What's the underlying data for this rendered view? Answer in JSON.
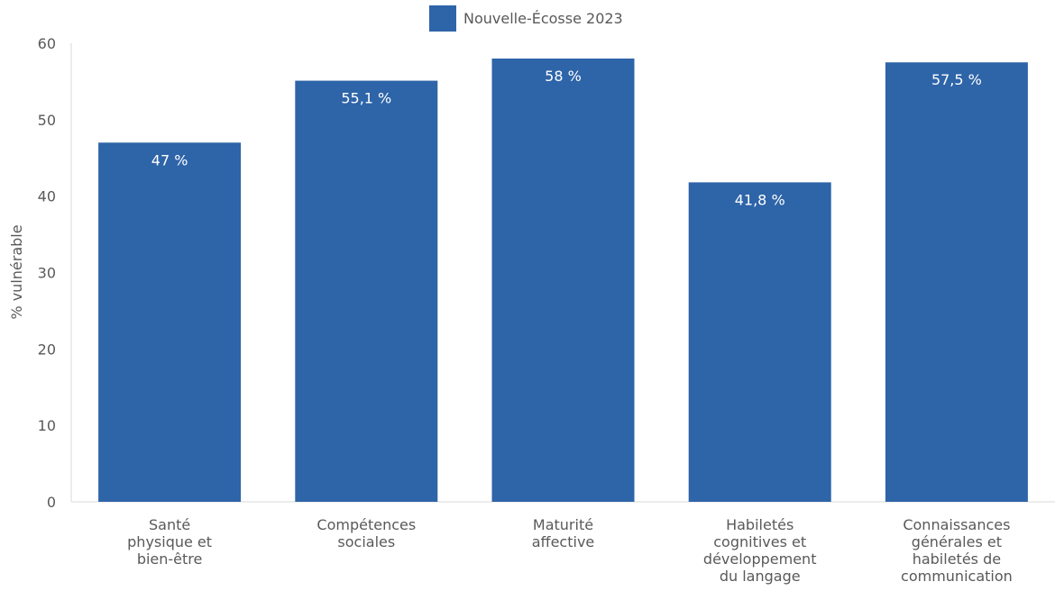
{
  "chart_data": {
    "type": "bar",
    "categories": [
      [
        "Santé",
        "physique et",
        "bien-être"
      ],
      [
        "Compétences",
        "sociales"
      ],
      [
        "Maturité",
        "affective"
      ],
      [
        "Habiletés",
        "cognitives et",
        "développement",
        "du langage"
      ],
      [
        "Connaissances",
        "générales et",
        "habiletés de",
        "communication"
      ]
    ],
    "series": [
      {
        "name": "Nouvelle-Écosse 2023",
        "values": [
          47,
          55.1,
          58,
          41.8,
          57.5
        ],
        "labels": [
          "47 %",
          "55,1 %",
          "58 %",
          "41,8 %",
          "57,5 %"
        ],
        "color": "#2e64a8"
      }
    ],
    "ylabel": "% vulnérable",
    "ylim": [
      0,
      60
    ],
    "yticks": [
      0,
      10,
      20,
      30,
      40,
      50,
      60
    ],
    "grid": false,
    "legend": "top-center"
  }
}
